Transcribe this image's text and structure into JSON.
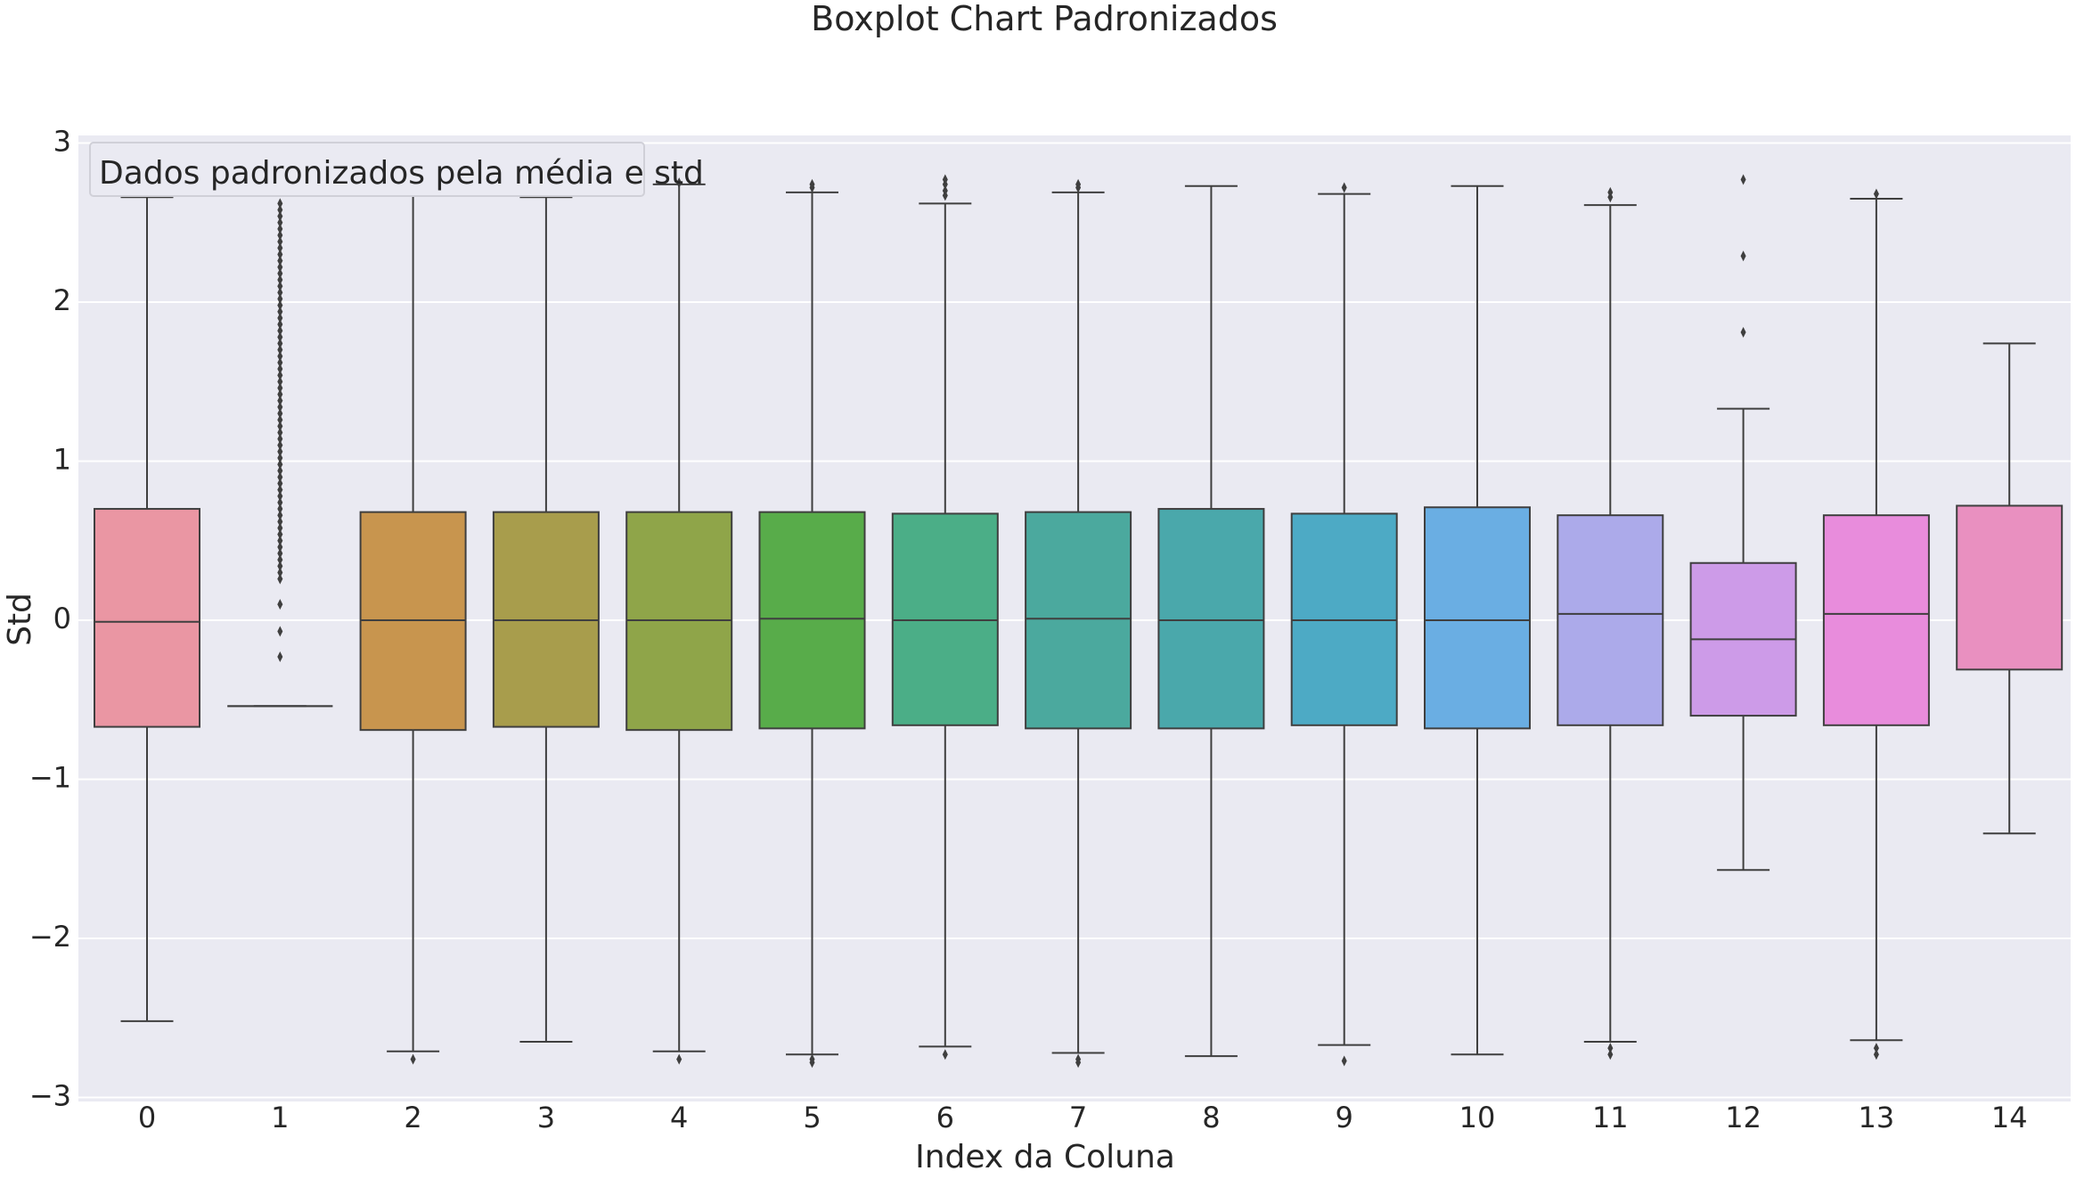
{
  "chart_data": {
    "type": "boxplot",
    "title": "Boxplot Chart Padronizados",
    "xlabel": "Index da Coluna",
    "ylabel": "Std",
    "annotation": "Dados padronizados pela média e std",
    "ylim": [
      -3.05,
      3.05
    ],
    "yticks": [
      3,
      2,
      1,
      0,
      -1,
      -2,
      -3
    ],
    "ytick_labels": [
      "3",
      "2",
      "1",
      "0",
      "−1",
      "−2",
      "−3"
    ],
    "grid": true,
    "categories": [
      "0",
      "1",
      "2",
      "3",
      "4",
      "5",
      "6",
      "7",
      "8",
      "9",
      "10",
      "11",
      "12",
      "13",
      "14"
    ],
    "boxes": [
      {
        "whisker_low": -2.52,
        "q1": -0.67,
        "median": -0.01,
        "q3": 0.7,
        "whisker_high": 2.66,
        "outliers": [],
        "color": "#ea96a3"
      },
      {
        "whisker_low": -0.54,
        "q1": -0.54,
        "median": -0.54,
        "q3": -0.54,
        "whisker_high": -0.54,
        "outliers": [
          -0.23,
          -0.07,
          0.1,
          0.26,
          0.3,
          0.34,
          0.38,
          0.42,
          0.46,
          0.5,
          0.54,
          0.58,
          0.62,
          0.66,
          0.7,
          0.74,
          0.78,
          0.82,
          0.86,
          0.9,
          0.94,
          0.98,
          1.02,
          1.06,
          1.1,
          1.14,
          1.18,
          1.22,
          1.26,
          1.3,
          1.34,
          1.38,
          1.42,
          1.46,
          1.5,
          1.54,
          1.58,
          1.62,
          1.66,
          1.7,
          1.74,
          1.78,
          1.82,
          1.86,
          1.9,
          1.94,
          1.98,
          2.02,
          2.06,
          2.1,
          2.14,
          2.18,
          2.22,
          2.26,
          2.3,
          2.34,
          2.38,
          2.42,
          2.46,
          2.5,
          2.54,
          2.58,
          2.62
        ],
        "color": "#e5a18d"
      },
      {
        "whisker_low": -2.71,
        "q1": -0.69,
        "median": 0.0,
        "q3": 0.68,
        "whisker_high": 2.74,
        "outliers": [
          -2.76
        ],
        "color": "#c8954e"
      },
      {
        "whisker_low": -2.65,
        "q1": -0.67,
        "median": 0.0,
        "q3": 0.68,
        "whisker_high": 2.66,
        "outliers": [],
        "color": "#a89d4c"
      },
      {
        "whisker_low": -2.71,
        "q1": -0.69,
        "median": 0.0,
        "q3": 0.68,
        "whisker_high": 2.74,
        "outliers": [
          -2.76,
          2.75
        ],
        "color": "#8fa549"
      },
      {
        "whisker_low": -2.73,
        "q1": -0.68,
        "median": 0.01,
        "q3": 0.68,
        "whisker_high": 2.69,
        "outliers": [
          -2.76,
          -2.78,
          2.72,
          2.74
        ],
        "color": "#58ac4a"
      },
      {
        "whisker_low": -2.68,
        "q1": -0.66,
        "median": 0.0,
        "q3": 0.67,
        "whisker_high": 2.62,
        "outliers": [
          -2.73,
          2.67,
          2.7,
          2.74,
          2.77
        ],
        "color": "#4bae87"
      },
      {
        "whisker_low": -2.72,
        "q1": -0.68,
        "median": 0.01,
        "q3": 0.68,
        "whisker_high": 2.69,
        "outliers": [
          -2.76,
          -2.78,
          2.72,
          2.74
        ],
        "color": "#4ba99e"
      },
      {
        "whisker_low": -2.74,
        "q1": -0.68,
        "median": 0.0,
        "q3": 0.7,
        "whisker_high": 2.73,
        "outliers": [],
        "color": "#4aa8ab"
      },
      {
        "whisker_low": -2.67,
        "q1": -0.66,
        "median": 0.0,
        "q3": 0.67,
        "whisker_high": 2.68,
        "outliers": [
          -2.77,
          2.72
        ],
        "color": "#4daac5"
      },
      {
        "whisker_low": -2.73,
        "q1": -0.68,
        "median": 0.0,
        "q3": 0.71,
        "whisker_high": 2.73,
        "outliers": [],
        "color": "#6aaee3"
      },
      {
        "whisker_low": -2.65,
        "q1": -0.66,
        "median": 0.04,
        "q3": 0.66,
        "whisker_high": 2.61,
        "outliers": [
          -2.69,
          -2.73,
          2.66,
          2.69
        ],
        "color": "#acaaea"
      },
      {
        "whisker_low": -1.57,
        "q1": -0.6,
        "median": -0.12,
        "q3": 0.36,
        "whisker_high": 1.33,
        "outliers": [
          1.81,
          2.29,
          2.77
        ],
        "color": "#cd9be8"
      },
      {
        "whisker_low": -2.64,
        "q1": -0.66,
        "median": 0.04,
        "q3": 0.66,
        "whisker_high": 2.65,
        "outliers": [
          -2.69,
          -2.73,
          2.68
        ],
        "color": "#e88cdc"
      },
      {
        "whisker_low": -1.34,
        "q1": -0.31,
        "median": null,
        "q3": 0.72,
        "whisker_high": 1.74,
        "outliers": [],
        "color": "#e990c0"
      }
    ]
  }
}
